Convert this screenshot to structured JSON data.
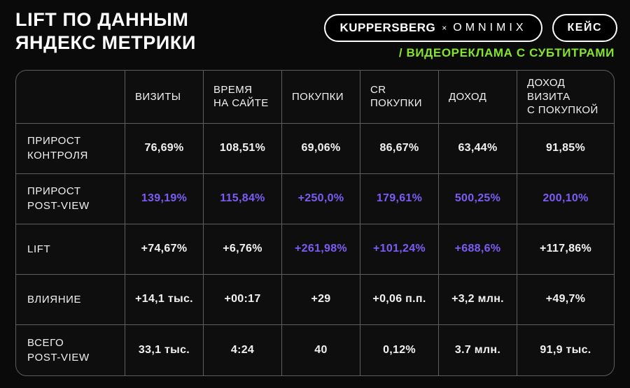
{
  "header": {
    "title": "LIFT ПО ДАННЫМ\nЯНДЕКС МЕТРИКИ",
    "brand_badge": {
      "brand_left": "KUPPERSBERG",
      "separator": "×",
      "brand_right": "OMNIMIX"
    },
    "case_badge_label": "КЕЙС",
    "subtitle": "/ ВИДЕОРЕКЛАМА С СУБТИТРАМИ"
  },
  "colors": {
    "background": "#0A0A0A",
    "accent_purple": "#7D5CF6",
    "accent_green": "#84E431",
    "grid_line": "#5E5E5E"
  },
  "chart_data": {
    "type": "table",
    "title": "LIFT ПО ДАННЫМ ЯНДЕКС МЕТРИКИ",
    "columns": [
      "ВИЗИТЫ",
      "ВРЕМЯ\nНА САЙТЕ",
      "ПОКУПКИ",
      "CR\nПОКУПКИ",
      "ДОХОД",
      "ДОХОД\nВИЗИТА\nС ПОКУПКОЙ"
    ],
    "rows": [
      {
        "label": "ПРИРОСТ\nКОНТРОЛЯ",
        "values": [
          "76,69%",
          "108,51%",
          "69,06%",
          "86,67%",
          "63,44%",
          "91,85%"
        ],
        "highlight": [
          false,
          false,
          false,
          false,
          false,
          false
        ]
      },
      {
        "label": "ПРИРОСТ\nPOST-VIEW",
        "values": [
          "139,19%",
          "115,84%",
          "+250,0%",
          "179,61%",
          "500,25%",
          "200,10%"
        ],
        "highlight": [
          true,
          true,
          true,
          true,
          true,
          true
        ]
      },
      {
        "label": "LIFT",
        "values": [
          "+74,67%",
          "+6,76%",
          "+261,98%",
          "+101,24%",
          "+688,6%",
          "+117,86%"
        ],
        "highlight": [
          false,
          false,
          true,
          true,
          true,
          false
        ]
      },
      {
        "label": "ВЛИЯНИЕ",
        "values": [
          "+14,1 тыс.",
          "+00:17",
          "+29",
          "+0,06 п.п.",
          "+3,2 млн.",
          "+49,7%"
        ],
        "highlight": [
          false,
          false,
          false,
          false,
          false,
          false
        ]
      },
      {
        "label": "ВСЕГО\nPOST-VIEW",
        "values": [
          "33,1 тыс.",
          "4:24",
          "40",
          "0,12%",
          "3.7 млн.",
          "91,9 тыс."
        ],
        "highlight": [
          false,
          false,
          false,
          false,
          false,
          false
        ]
      }
    ]
  }
}
